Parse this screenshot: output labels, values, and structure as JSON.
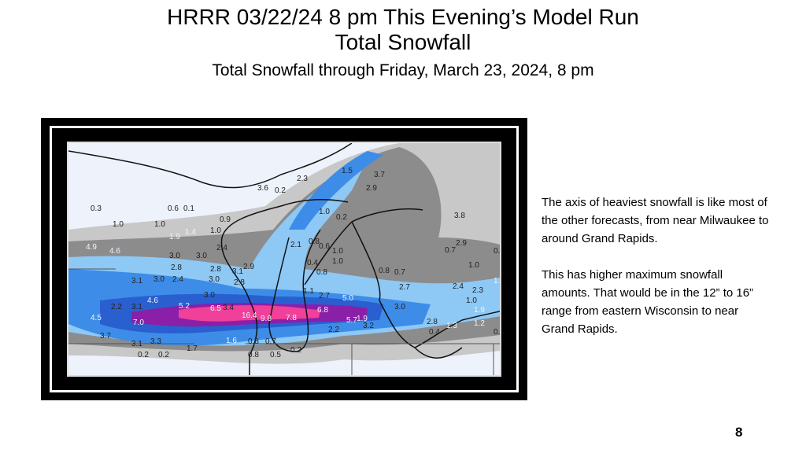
{
  "slide": {
    "title_line1": "HRRR  03/22/24  8 pm This Evening’s  Model Run",
    "title_line2": "Total Snowfall",
    "subtitle": "Total Snowfall through Friday, March 23, 2024, 8 pm",
    "paragraph1": "The axis of heaviest snowfall is like most of the other forecasts, from near Milwaukee to around Grand Rapids.",
    "paragraph2": "This has higher maximum snowfall amounts.  That would be in the 12” to 16” range from eastern Wisconsin to near Grand Rapids.",
    "page_number": "8"
  },
  "map": {
    "colors": {
      "background": "#eef2fb",
      "light_gray": "#c8c8c8",
      "gray": "#8c8c8c",
      "dark_gray": "#6e6e6e",
      "light_blue": "#8ec8f5",
      "blue": "#3d8de8",
      "dark_blue": "#2a5fd0",
      "purple": "#8a1fa8",
      "magenta": "#f0409a"
    },
    "snowfall_labels": [
      "0.3",
      "0.6",
      "0.1",
      "0.2",
      "2.3",
      "1.0",
      "1.0",
      "0.9",
      "1.0",
      "1.4",
      "1.9",
      "2.4",
      "3.0",
      "4.9",
      "4.6",
      "3.0",
      "2.8",
      "3.0",
      "2.1",
      "2.9",
      "3.6",
      "1.5",
      "3.7",
      "2.9",
      "1.0",
      "0.2",
      "3.8",
      "2.9",
      "0.8",
      "0.6",
      "1.0",
      "1.0",
      "0.4",
      "0.8",
      "0.8",
      "0.7",
      "0.7",
      "0.5",
      "1.0",
      "1.9",
      "3.1",
      "3.0",
      "2.8",
      "2.4",
      "3.1",
      "2.8",
      "3.0",
      "3.4",
      "1.1",
      "2.7",
      "2.7",
      "2.4",
      "2.3",
      "4.6",
      "5.2",
      "6.5",
      "2.2",
      "3.1",
      "4.5",
      "7.0",
      "16.4",
      "9.8",
      "7.8",
      "6.8",
      "5.0",
      "5.7",
      "3.0",
      "3.2",
      "2.2",
      "3.7",
      "3.3",
      "3.1",
      "1.6",
      "0.8",
      "0.7",
      "1.9",
      "2.8",
      "0.4",
      "1.3",
      "1.2",
      "1.9",
      "1.0",
      "0.1",
      "0.2",
      "0.2",
      "1.7",
      "0.8",
      "0.5",
      "0.2"
    ]
  }
}
